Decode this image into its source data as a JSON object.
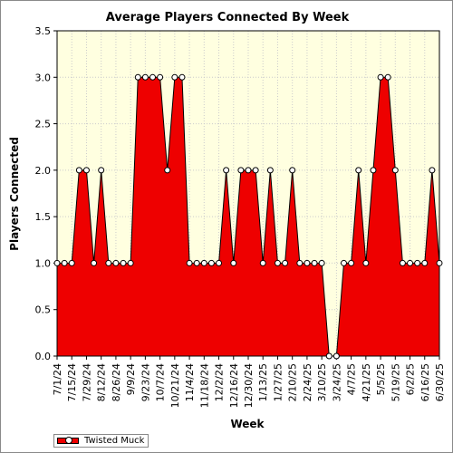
{
  "chart_data": {
    "type": "area",
    "title": "Average Players Connected By Week",
    "xlabel": "Week",
    "ylabel": "Players Connected",
    "ylim": [
      0,
      3.5
    ],
    "yticks": [
      "0.0",
      "0.5",
      "1.0",
      "1.5",
      "2.0",
      "2.5",
      "3.0",
      "3.5"
    ],
    "xticks": [
      "7/1/24",
      "7/15/24",
      "7/29/24",
      "8/12/24",
      "8/26/24",
      "9/9/24",
      "9/23/24",
      "10/7/24",
      "10/21/24",
      "11/4/24",
      "11/18/24",
      "12/2/24",
      "12/16/24",
      "12/30/24",
      "1/13/25",
      "1/27/25",
      "2/10/25",
      "2/24/25",
      "3/10/25",
      "3/24/25",
      "4/7/25",
      "4/21/25",
      "5/5/25",
      "5/19/25",
      "6/2/25",
      "6/16/25",
      "6/30/25"
    ],
    "x": [
      "7/1/24",
      "7/8/24",
      "7/15/24",
      "7/22/24",
      "7/29/24",
      "8/5/24",
      "8/12/24",
      "8/19/24",
      "8/26/24",
      "9/2/24",
      "9/9/24",
      "9/16/24",
      "9/23/24",
      "9/30/24",
      "10/7/24",
      "10/14/24",
      "10/21/24",
      "10/28/24",
      "11/4/24",
      "11/11/24",
      "11/18/24",
      "11/25/24",
      "12/2/24",
      "12/9/24",
      "12/16/24",
      "12/23/24",
      "12/30/24",
      "1/6/25",
      "1/13/25",
      "1/20/25",
      "1/27/25",
      "2/3/25",
      "2/10/25",
      "2/17/25",
      "2/24/25",
      "3/3/25",
      "3/10/25",
      "3/17/25",
      "3/24/25",
      "3/31/25",
      "4/7/25",
      "4/14/25",
      "4/21/25",
      "4/28/25",
      "5/5/25",
      "5/12/25",
      "5/19/25",
      "5/26/25",
      "6/2/25",
      "6/9/25",
      "6/16/25",
      "6/23/25",
      "6/30/25"
    ],
    "series": [
      {
        "name": "Twisted Muck",
        "values": [
          1,
          1,
          1,
          2,
          2,
          1,
          2,
          1,
          1,
          1,
          1,
          3,
          3,
          3,
          3,
          2,
          3,
          3,
          1,
          1,
          1,
          1,
          1,
          2,
          1,
          2,
          2,
          2,
          1,
          2,
          1,
          1,
          2,
          1,
          1,
          1,
          1,
          0,
          0,
          1,
          1,
          2,
          1,
          2,
          3,
          3,
          2,
          1,
          1,
          1,
          1,
          2,
          1
        ]
      }
    ],
    "colors": {
      "fill": "#ee0000",
      "plot_bg": "#ffffe0",
      "grid": "#cccccc",
      "marker": "#ffffff"
    },
    "grid": true,
    "legend_position": "bottom-left"
  }
}
